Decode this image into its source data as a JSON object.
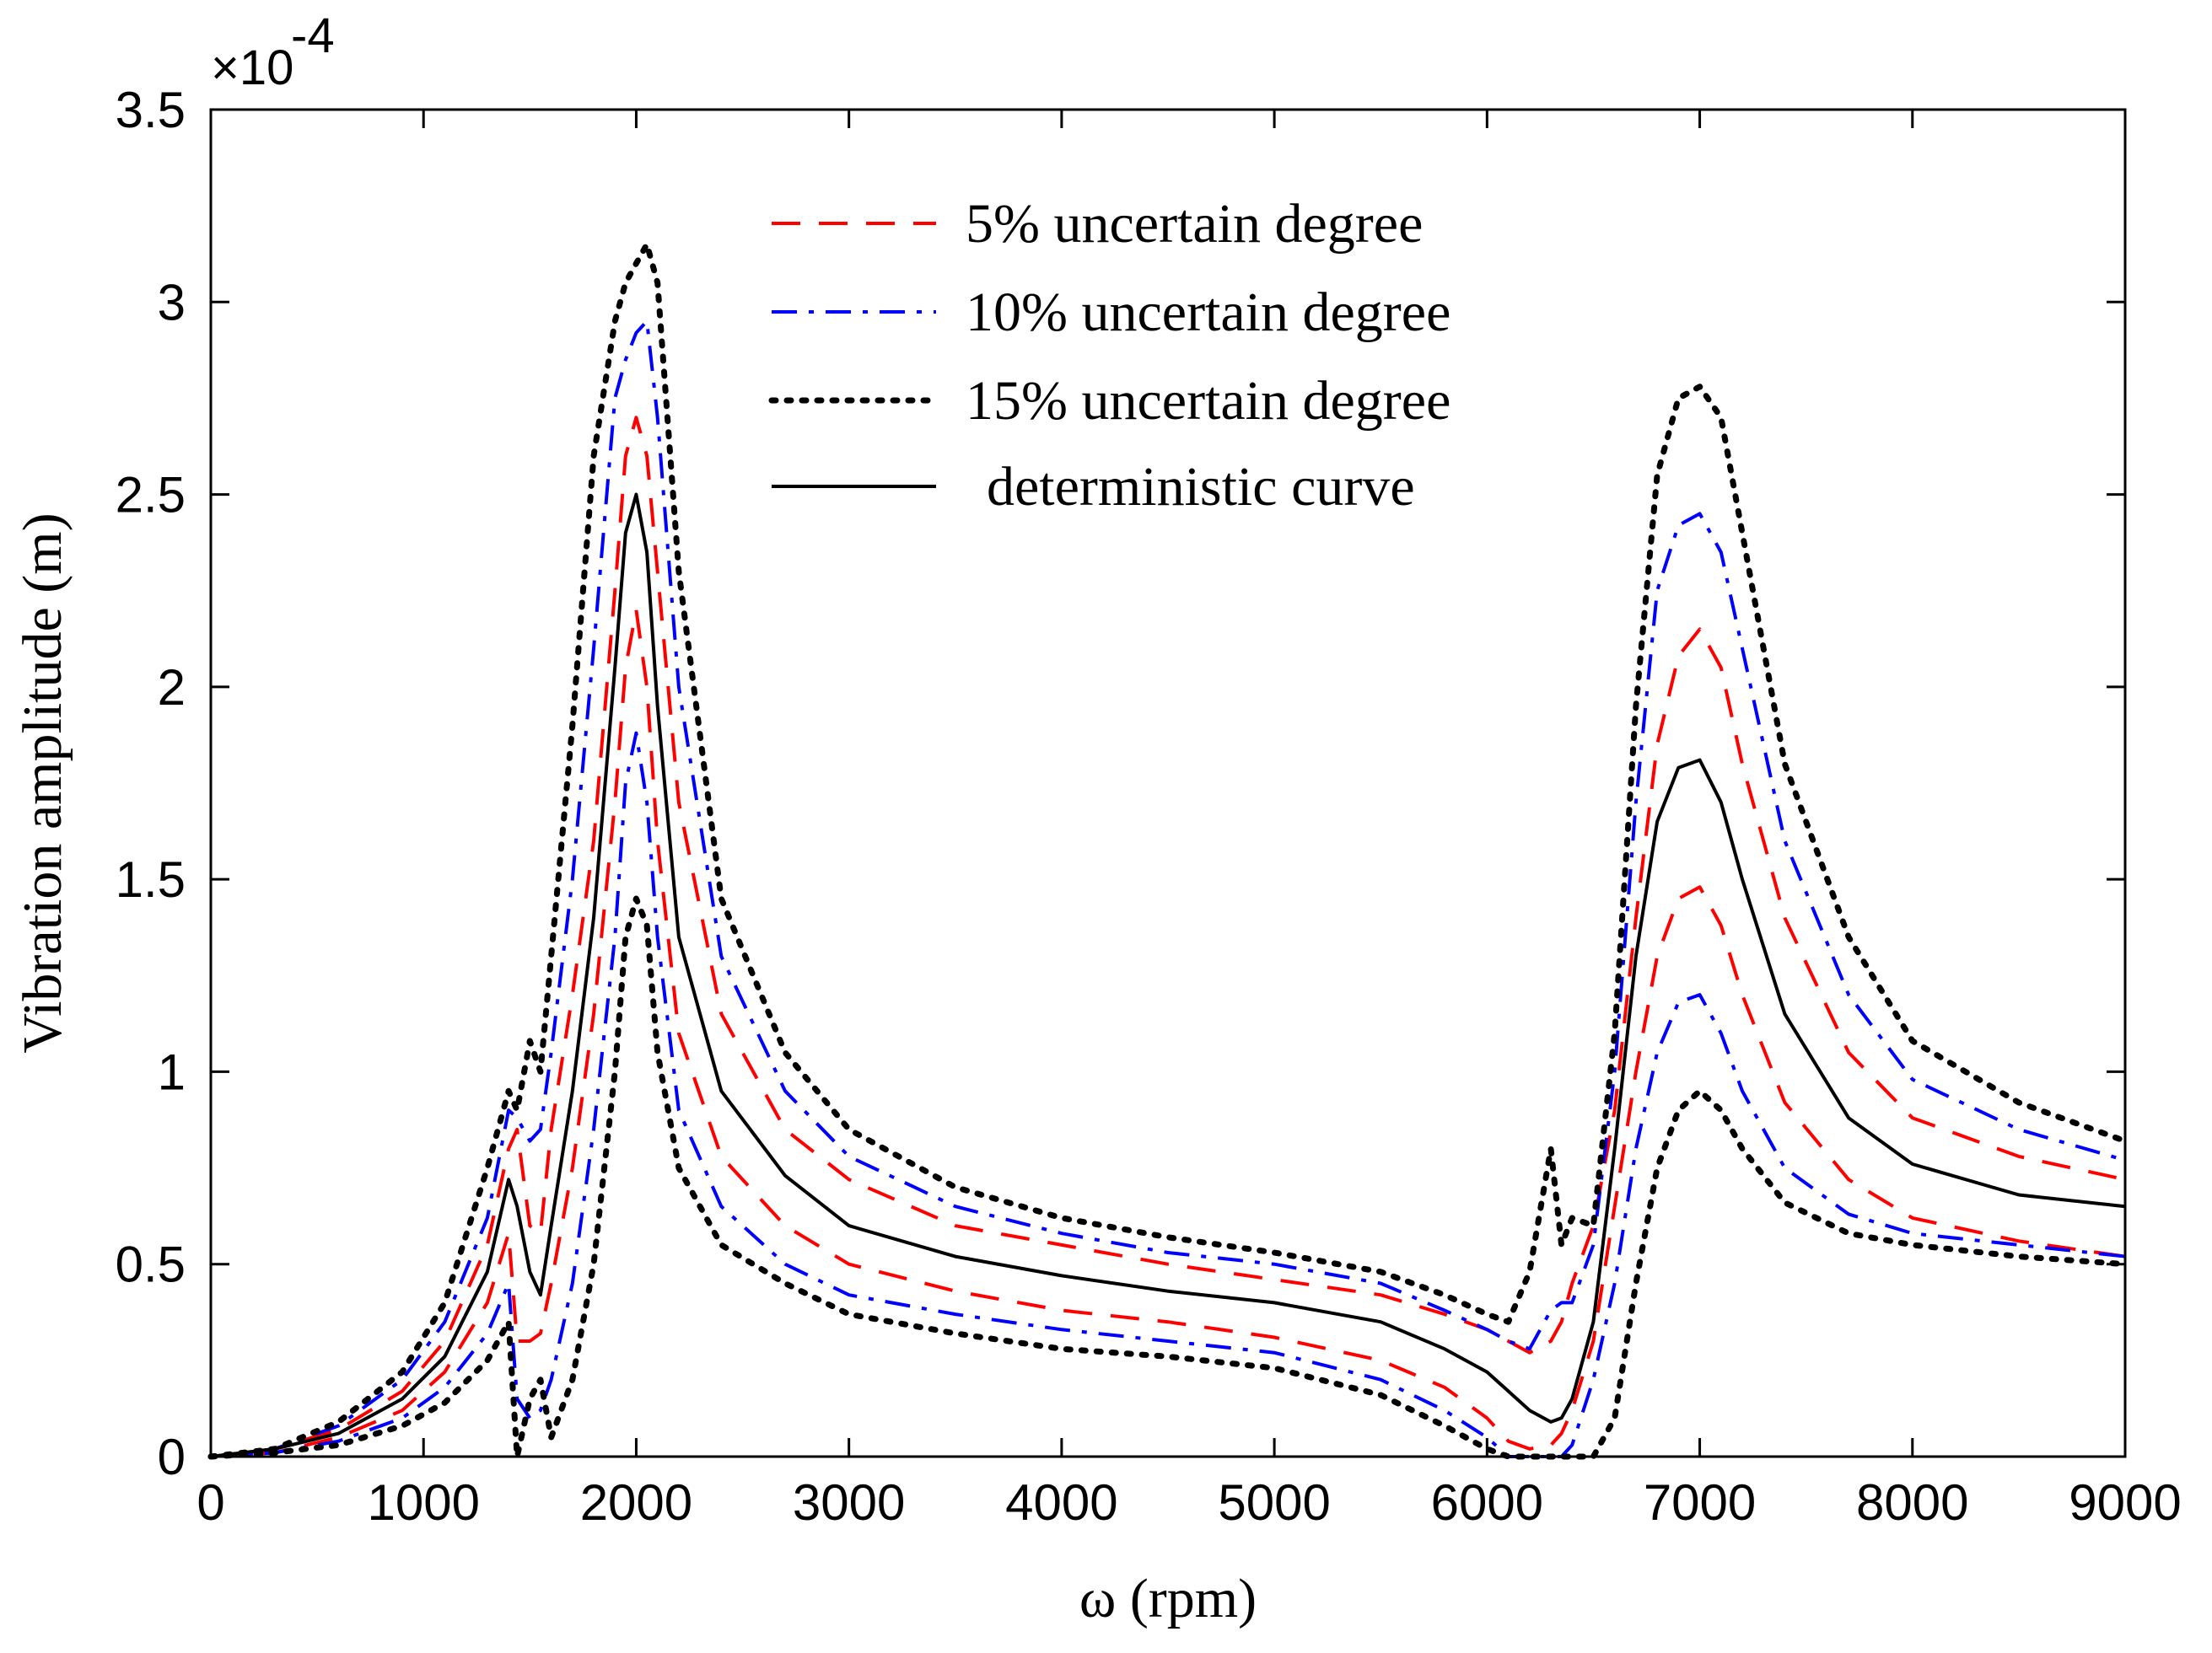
{
  "chart_data": {
    "type": "line",
    "title": "",
    "xlabel": "ω (rpm)",
    "ylabel": "Vibration amplitude (m)",
    "y_scale_factor": "×10",
    "y_scale_exponent": "-4",
    "xlim": [
      0,
      9000
    ],
    "ylim": [
      0,
      3.5
    ],
    "x_ticks": [
      "0",
      "1000",
      "2000",
      "3000",
      "4000",
      "5000",
      "6000",
      "7000",
      "8000",
      "9000"
    ],
    "y_ticks": [
      "0",
      "0.5",
      "1",
      "1.5",
      "2",
      "2.5",
      "3",
      "3.5"
    ],
    "legend_position": "top-center",
    "grid": false,
    "x": [
      0,
      300,
      600,
      900,
      1100,
      1300,
      1400,
      1440,
      1500,
      1550,
      1600,
      1700,
      1800,
      1900,
      1950,
      2000,
      2050,
      2100,
      2200,
      2400,
      2700,
      3000,
      3500,
      4000,
      4500,
      5000,
      5500,
      5800,
      6000,
      6100,
      6200,
      6300,
      6350,
      6400,
      6500,
      6600,
      6700,
      6800,
      6900,
      7000,
      7100,
      7200,
      7400,
      7700,
      8000,
      8500,
      9000
    ],
    "series": [
      {
        "name": "5% uncertain degree (upper)",
        "legend_label": "5% uncertain degree",
        "color": "#ff0000",
        "dash": "dash",
        "values": [
          0,
          0.02,
          0.07,
          0.17,
          0.3,
          0.55,
          0.8,
          0.85,
          0.6,
          0.58,
          0.85,
          1.2,
          1.6,
          2.25,
          2.6,
          2.7,
          2.6,
          2.3,
          1.7,
          1.15,
          0.85,
          0.72,
          0.6,
          0.55,
          0.5,
          0.46,
          0.42,
          0.37,
          0.33,
          0.3,
          0.27,
          0.3,
          0.35,
          0.45,
          0.6,
          0.9,
          1.4,
          1.85,
          2.08,
          2.15,
          2.05,
          1.8,
          1.4,
          1.05,
          0.88,
          0.78,
          0.72
        ]
      },
      {
        "name": "5% uncertain degree (lower)",
        "legend_label": "",
        "color": "#ff0000",
        "dash": "dash",
        "values": [
          0,
          0.01,
          0.05,
          0.12,
          0.22,
          0.4,
          0.58,
          0.3,
          0.3,
          0.32,
          0.45,
          0.75,
          1.15,
          1.7,
          2.05,
          2.2,
          2.0,
          1.6,
          1.1,
          0.78,
          0.6,
          0.5,
          0.43,
          0.38,
          0.35,
          0.31,
          0.25,
          0.18,
          0.1,
          0.04,
          0.02,
          0.03,
          0.06,
          0.12,
          0.3,
          0.65,
          1.0,
          1.3,
          1.45,
          1.48,
          1.38,
          1.2,
          0.92,
          0.72,
          0.62,
          0.56,
          0.52
        ]
      },
      {
        "name": "10% uncertain degree (upper)",
        "legend_label": "10% uncertain degree",
        "color": "#0000ff",
        "dash": "dashdot",
        "values": [
          0,
          0.02,
          0.08,
          0.2,
          0.35,
          0.62,
          0.9,
          0.88,
          0.82,
          0.85,
          1.05,
          1.5,
          2.1,
          2.75,
          2.85,
          2.92,
          2.95,
          2.7,
          2.0,
          1.3,
          0.95,
          0.78,
          0.65,
          0.58,
          0.53,
          0.5,
          0.45,
          0.38,
          0.33,
          0.3,
          0.28,
          0.38,
          0.4,
          0.4,
          0.55,
          1.0,
          1.7,
          2.25,
          2.42,
          2.45,
          2.35,
          2.1,
          1.6,
          1.2,
          0.98,
          0.85,
          0.77
        ]
      },
      {
        "name": "10% uncertain degree (lower)",
        "legend_label": "",
        "color": "#0000ff",
        "dash": "dashdot",
        "values": [
          0,
          0.01,
          0.04,
          0.1,
          0.18,
          0.32,
          0.45,
          0.15,
          0.1,
          0.12,
          0.2,
          0.45,
          0.85,
          1.35,
          1.75,
          1.88,
          1.7,
          1.35,
          0.9,
          0.65,
          0.5,
          0.42,
          0.37,
          0.33,
          0.3,
          0.27,
          0.2,
          0.12,
          0.05,
          0.0,
          0.0,
          0.0,
          0.0,
          0.03,
          0.2,
          0.45,
          0.8,
          1.05,
          1.18,
          1.2,
          1.1,
          0.95,
          0.75,
          0.63,
          0.58,
          0.55,
          0.52
        ]
      },
      {
        "name": "15% uncertain degree (upper)",
        "legend_label": "15% uncertain degree",
        "color": "#000000",
        "dash": "dot",
        "values": [
          0,
          0.02,
          0.09,
          0.22,
          0.4,
          0.75,
          0.95,
          0.9,
          1.08,
          1.0,
          1.3,
          1.9,
          2.6,
          2.95,
          3.05,
          3.1,
          3.15,
          3.05,
          2.3,
          1.45,
          1.05,
          0.85,
          0.7,
          0.62,
          0.57,
          0.53,
          0.48,
          0.42,
          0.37,
          0.35,
          0.48,
          0.8,
          0.55,
          0.62,
          0.6,
          1.1,
          1.95,
          2.55,
          2.75,
          2.78,
          2.7,
          2.4,
          1.8,
          1.35,
          1.08,
          0.92,
          0.82
        ]
      },
      {
        "name": "15% uncertain degree (lower)",
        "legend_label": "",
        "color": "#000000",
        "dash": "dot",
        "values": [
          0,
          0.01,
          0.03,
          0.08,
          0.14,
          0.25,
          0.35,
          0.0,
          0.15,
          0.2,
          0.05,
          0.2,
          0.5,
          1.0,
          1.35,
          1.45,
          1.38,
          1.05,
          0.75,
          0.55,
          0.45,
          0.37,
          0.32,
          0.28,
          0.26,
          0.23,
          0.16,
          0.08,
          0.02,
          0.0,
          0.0,
          0.0,
          0.0,
          0.0,
          0.0,
          0.1,
          0.45,
          0.75,
          0.9,
          0.95,
          0.9,
          0.8,
          0.66,
          0.58,
          0.55,
          0.52,
          0.5
        ]
      },
      {
        "name": "deterministic curve",
        "legend_label": "deterministic curve",
        "color": "#000000",
        "dash": "solid",
        "values": [
          0,
          0.02,
          0.06,
          0.15,
          0.26,
          0.48,
          0.72,
          0.65,
          0.48,
          0.42,
          0.6,
          0.95,
          1.4,
          2.05,
          2.4,
          2.5,
          2.35,
          1.95,
          1.35,
          0.95,
          0.73,
          0.6,
          0.52,
          0.47,
          0.43,
          0.4,
          0.35,
          0.28,
          0.22,
          0.17,
          0.12,
          0.09,
          0.1,
          0.15,
          0.35,
          0.8,
          1.3,
          1.65,
          1.79,
          1.81,
          1.7,
          1.5,
          1.15,
          0.88,
          0.76,
          0.68,
          0.65
        ]
      }
    ]
  }
}
